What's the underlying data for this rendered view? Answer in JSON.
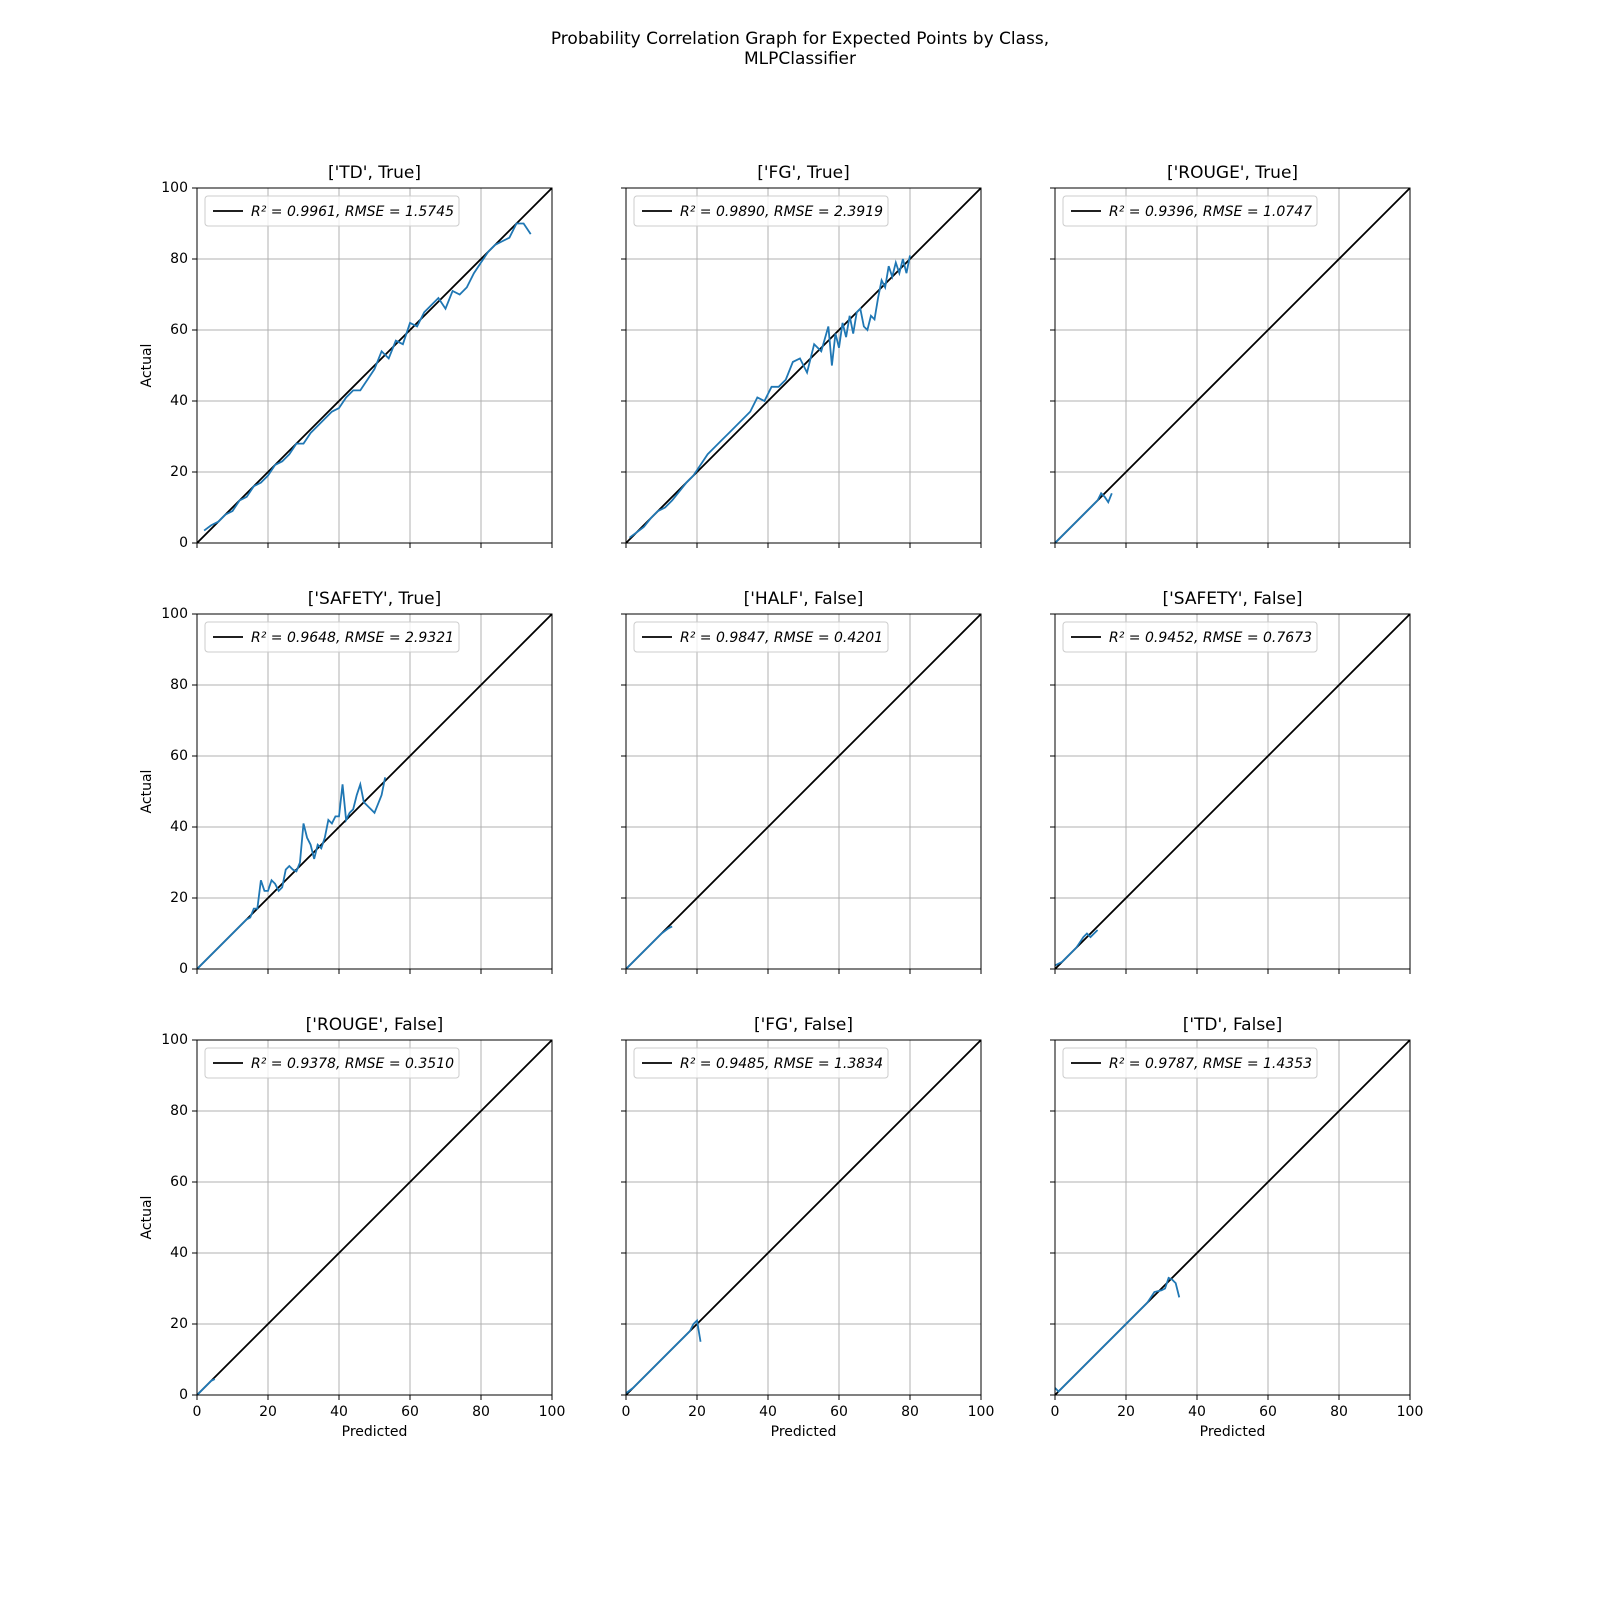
{
  "title": [
    "Probability Correlation Graph for Expected Points by Class,",
    "MLPClassifier"
  ],
  "chart_data": [
    {
      "type": "line",
      "title": "['TD', True]",
      "ylabel": "Actual",
      "xlim": [
        0,
        100
      ],
      "ylim": [
        0,
        100
      ],
      "xticks": [
        0,
        20,
        40,
        60,
        80,
        100
      ],
      "yticks": [
        0,
        20,
        40,
        60,
        80,
        100
      ],
      "x_tick_labels": false,
      "y_tick_labels": true,
      "grid": true,
      "legend": "upper left",
      "series": [
        {
          "name": "R² = 0.9961, RMSE = 1.5745",
          "color": "#000000",
          "x": [
            0,
            100
          ],
          "values": [
            0,
            100
          ]
        },
        {
          "color": "#1f77b4",
          "x": [
            2,
            4,
            6,
            8,
            10,
            12,
            14,
            16,
            18,
            20,
            22,
            24,
            26,
            28,
            30,
            32,
            34,
            36,
            38,
            40,
            42,
            44,
            46,
            48,
            50,
            52,
            54,
            56,
            58,
            60,
            62,
            64,
            66,
            68,
            70,
            72,
            74,
            76,
            78,
            80,
            82,
            84,
            86,
            88,
            90,
            92,
            94
          ],
          "values": [
            3.5,
            5,
            6,
            8,
            9,
            12,
            13,
            16,
            17,
            19,
            22,
            23,
            25,
            28,
            28,
            31,
            33,
            35,
            37,
            38,
            41,
            43,
            43,
            46,
            49,
            54,
            52,
            57,
            56,
            62,
            61,
            65,
            67,
            69,
            66,
            71,
            70,
            72,
            76,
            79,
            82,
            84,
            85,
            86,
            90,
            90,
            87
          ]
        }
      ]
    },
    {
      "type": "line",
      "title": "['FG', True]",
      "xlim": [
        0,
        100
      ],
      "ylim": [
        0,
        100
      ],
      "xticks": [
        0,
        20,
        40,
        60,
        80,
        100
      ],
      "yticks": [
        0,
        20,
        40,
        60,
        80,
        100
      ],
      "x_tick_labels": false,
      "y_tick_labels": false,
      "grid": true,
      "legend": "upper left",
      "series": [
        {
          "name": "R² = 0.9890, RMSE = 2.3919",
          "color": "#000000",
          "x": [
            0,
            100
          ],
          "values": [
            0,
            100
          ]
        },
        {
          "color": "#1f77b4",
          "x": [
            1,
            3,
            5,
            7,
            9,
            11,
            13,
            15,
            17,
            19,
            21,
            23,
            25,
            27,
            29,
            31,
            33,
            35,
            37,
            39,
            41,
            43,
            45,
            47,
            49,
            51,
            53,
            55,
            57,
            58,
            59,
            60,
            61,
            62,
            63,
            64,
            65,
            66,
            67,
            68,
            69,
            70,
            71,
            72,
            73,
            74,
            75,
            76,
            77,
            78,
            79,
            80
          ],
          "values": [
            1.5,
            3,
            4.5,
            7,
            9,
            10,
            12,
            14.5,
            17,
            19,
            22,
            25,
            27,
            29,
            31,
            33,
            35,
            37,
            41,
            40,
            44,
            44,
            46,
            51,
            52,
            48,
            56,
            54,
            61,
            50,
            59,
            55,
            62,
            58,
            64,
            59,
            65,
            66,
            61,
            60,
            64,
            63,
            69,
            74,
            72,
            78,
            75,
            79,
            76,
            80,
            76,
            81
          ]
        }
      ]
    },
    {
      "type": "line",
      "title": "['ROUGE', True]",
      "xlim": [
        0,
        100
      ],
      "ylim": [
        0,
        100
      ],
      "xticks": [
        0,
        20,
        40,
        60,
        80,
        100
      ],
      "yticks": [
        0,
        20,
        40,
        60,
        80,
        100
      ],
      "x_tick_labels": false,
      "y_tick_labels": false,
      "grid": true,
      "legend": "upper left",
      "series": [
        {
          "name": "R² = 0.9396, RMSE = 1.0747",
          "color": "#000000",
          "x": [
            0,
            100
          ],
          "values": [
            0,
            100
          ]
        },
        {
          "color": "#1f77b4",
          "x": [
            0,
            2,
            4,
            6,
            8,
            10,
            12,
            13,
            14,
            15,
            16
          ],
          "values": [
            0,
            2,
            4,
            6,
            8,
            10,
            12,
            14,
            13,
            11.5,
            14
          ]
        }
      ]
    },
    {
      "type": "line",
      "title": "['SAFETY', True]",
      "ylabel": "Actual",
      "xlim": [
        0,
        100
      ],
      "ylim": [
        0,
        100
      ],
      "xticks": [
        0,
        20,
        40,
        60,
        80,
        100
      ],
      "yticks": [
        0,
        20,
        40,
        60,
        80,
        100
      ],
      "x_tick_labels": false,
      "y_tick_labels": true,
      "grid": true,
      "legend": "upper left",
      "series": [
        {
          "name": "R² = 0.9648, RMSE = 2.9321",
          "color": "#000000",
          "x": [
            0,
            100
          ],
          "values": [
            0,
            100
          ]
        },
        {
          "color": "#1f77b4",
          "x": [
            0,
            2,
            4,
            6,
            8,
            10,
            12,
            14,
            15,
            16,
            17,
            18,
            19,
            20,
            21,
            22,
            23,
            24,
            25,
            26,
            27,
            28,
            29,
            30,
            31,
            32,
            33,
            34,
            35,
            36,
            37,
            38,
            39,
            40,
            41,
            42,
            43,
            44,
            45,
            46,
            47,
            48,
            50,
            52,
            53
          ],
          "values": [
            0,
            2,
            4,
            6,
            8,
            10,
            12,
            14,
            14.5,
            17,
            17,
            25,
            22,
            22,
            25,
            24,
            22,
            23,
            28,
            29,
            28,
            27.5,
            30,
            41,
            37,
            35,
            31,
            35,
            34,
            37,
            42,
            41,
            43,
            43,
            52,
            42,
            44,
            45,
            49,
            52,
            47,
            46,
            44,
            49,
            54
          ]
        }
      ]
    },
    {
      "type": "line",
      "title": "['HALF', False]",
      "xlim": [
        0,
        100
      ],
      "ylim": [
        0,
        100
      ],
      "xticks": [
        0,
        20,
        40,
        60,
        80,
        100
      ],
      "yticks": [
        0,
        20,
        40,
        60,
        80,
        100
      ],
      "x_tick_labels": false,
      "y_tick_labels": false,
      "grid": true,
      "legend": "upper left",
      "series": [
        {
          "name": "R² = 0.9847, RMSE = 0.4201",
          "color": "#000000",
          "x": [
            0,
            100
          ],
          "values": [
            0,
            100
          ]
        },
        {
          "color": "#1f77b4",
          "x": [
            0,
            2,
            4,
            6,
            8,
            10,
            12,
            13
          ],
          "values": [
            0,
            2,
            4,
            6,
            8,
            10,
            11.5,
            12
          ]
        }
      ]
    },
    {
      "type": "line",
      "title": "['SAFETY', False]",
      "xlim": [
        0,
        100
      ],
      "ylim": [
        0,
        100
      ],
      "xticks": [
        0,
        20,
        40,
        60,
        80,
        100
      ],
      "yticks": [
        0,
        20,
        40,
        60,
        80,
        100
      ],
      "x_tick_labels": false,
      "y_tick_labels": false,
      "grid": true,
      "legend": "upper left",
      "series": [
        {
          "name": "R² = 0.9452, RMSE = 0.7673",
          "color": "#000000",
          "x": [
            0,
            100
          ],
          "values": [
            0,
            100
          ]
        },
        {
          "color": "#1f77b4",
          "x": [
            0,
            1,
            2,
            4,
            6,
            8,
            9,
            10,
            11,
            12
          ],
          "values": [
            1,
            1.5,
            2,
            4,
            6,
            9,
            10,
            9,
            10,
            11
          ]
        }
      ]
    },
    {
      "type": "line",
      "title": "['ROUGE', False]",
      "xlabel": "Predicted",
      "ylabel": "Actual",
      "xlim": [
        0,
        100
      ],
      "ylim": [
        0,
        100
      ],
      "xticks": [
        0,
        20,
        40,
        60,
        80,
        100
      ],
      "yticks": [
        0,
        20,
        40,
        60,
        80,
        100
      ],
      "x_tick_labels": true,
      "y_tick_labels": true,
      "grid": true,
      "legend": "upper left",
      "series": [
        {
          "name": "R² = 0.9378, RMSE = 0.3510",
          "color": "#000000",
          "x": [
            0,
            100
          ],
          "values": [
            0,
            100
          ]
        },
        {
          "color": "#1f77b4",
          "x": [
            0,
            1,
            2,
            3,
            4,
            5
          ],
          "values": [
            0,
            1,
            2,
            3,
            4,
            4.5
          ]
        }
      ]
    },
    {
      "type": "line",
      "title": "['FG', False]",
      "xlabel": "Predicted",
      "xlim": [
        0,
        100
      ],
      "ylim": [
        0,
        100
      ],
      "xticks": [
        0,
        20,
        40,
        60,
        80,
        100
      ],
      "yticks": [
        0,
        20,
        40,
        60,
        80,
        100
      ],
      "x_tick_labels": true,
      "y_tick_labels": false,
      "grid": true,
      "legend": "upper left",
      "series": [
        {
          "name": "R² = 0.9485, RMSE = 1.3834",
          "color": "#000000",
          "x": [
            0,
            100
          ],
          "values": [
            0,
            100
          ]
        },
        {
          "color": "#1f77b4",
          "x": [
            0,
            2,
            4,
            6,
            8,
            10,
            12,
            14,
            16,
            18,
            19,
            20,
            21
          ],
          "values": [
            0.5,
            2,
            4,
            6,
            8,
            10,
            12,
            14,
            16,
            18,
            20,
            21,
            15
          ]
        }
      ]
    },
    {
      "type": "line",
      "title": "['TD', False]",
      "xlabel": "Predicted",
      "xlim": [
        0,
        100
      ],
      "ylim": [
        0,
        100
      ],
      "xticks": [
        0,
        20,
        40,
        60,
        80,
        100
      ],
      "yticks": [
        0,
        20,
        40,
        60,
        80,
        100
      ],
      "x_tick_labels": true,
      "y_tick_labels": false,
      "grid": true,
      "legend": "upper left",
      "series": [
        {
          "name": "R² = 0.9787, RMSE = 1.4353",
          "color": "#000000",
          "x": [
            0,
            100
          ],
          "values": [
            0,
            100
          ]
        },
        {
          "color": "#1f77b4",
          "x": [
            0,
            1,
            2,
            4,
            6,
            8,
            10,
            12,
            14,
            16,
            18,
            20,
            22,
            24,
            26,
            28,
            30,
            31,
            32,
            33,
            34,
            35
          ],
          "values": [
            2,
            1,
            2,
            4,
            6,
            8,
            10,
            12,
            14,
            16,
            18,
            20,
            22,
            24,
            26,
            29,
            29.5,
            30,
            33,
            32.5,
            31.5,
            27.5
          ]
        }
      ]
    }
  ]
}
